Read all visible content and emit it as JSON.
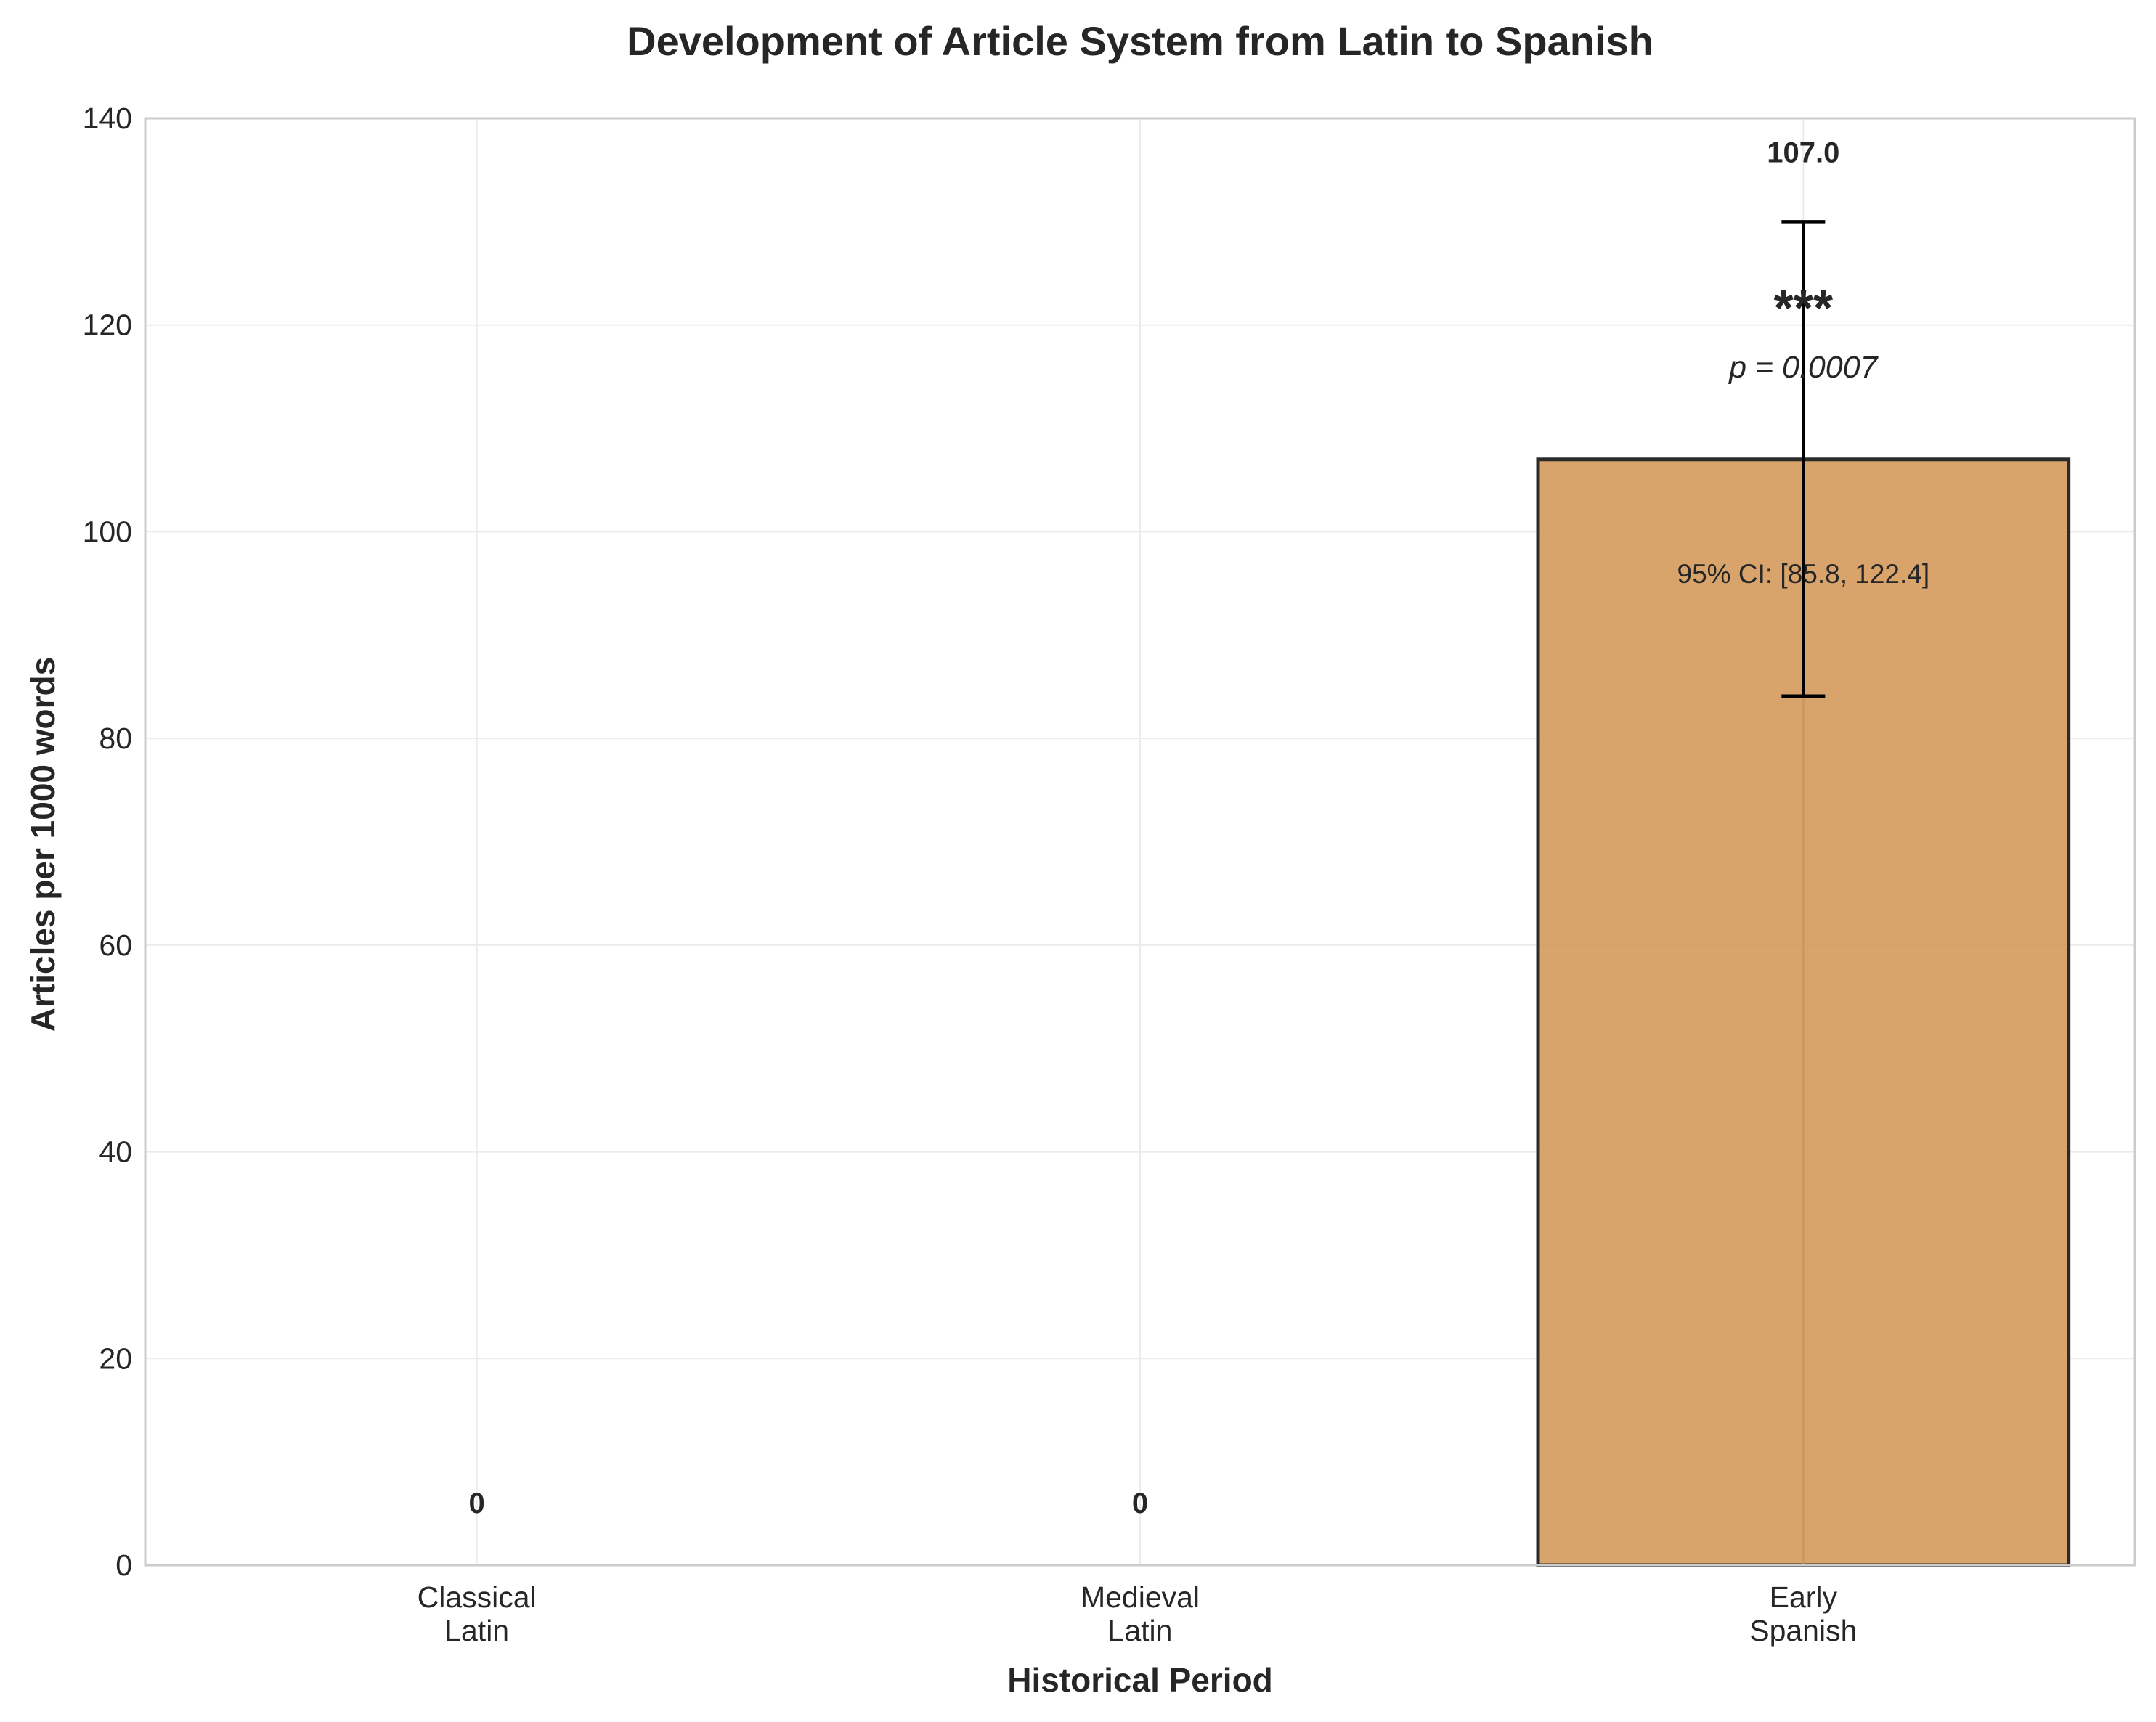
{
  "chart_data": {
    "type": "bar",
    "title": "Development of Article System from Latin to Spanish",
    "xlabel": "Historical Period",
    "ylabel": "Articles per 1000 words",
    "ylim": [
      0,
      140
    ],
    "yticks": [
      0,
      20,
      40,
      60,
      80,
      100,
      120,
      140
    ],
    "grid": true,
    "categories": [
      [
        "Classical",
        "Latin"
      ],
      [
        "Medieval",
        "Latin"
      ],
      [
        "Early",
        "Spanish"
      ]
    ],
    "values": [
      0,
      0,
      107.0
    ],
    "value_labels": [
      "0",
      "0",
      "107.0"
    ],
    "error_bars": [
      null,
      null,
      {
        "lower": 84.1,
        "upper": 130.0
      }
    ],
    "annotations": [
      {
        "category_index": 2,
        "stars": "***",
        "p_text": "p = 0.0007",
        "ci_text": "95% CI: [85.8, 122.4]"
      }
    ],
    "colors": {
      "bar_fill": "#d49a5c",
      "bar_edge": "#2b2b2b",
      "grid": "#ebebeb",
      "axis": "#cccccc",
      "text": "#262626"
    }
  }
}
